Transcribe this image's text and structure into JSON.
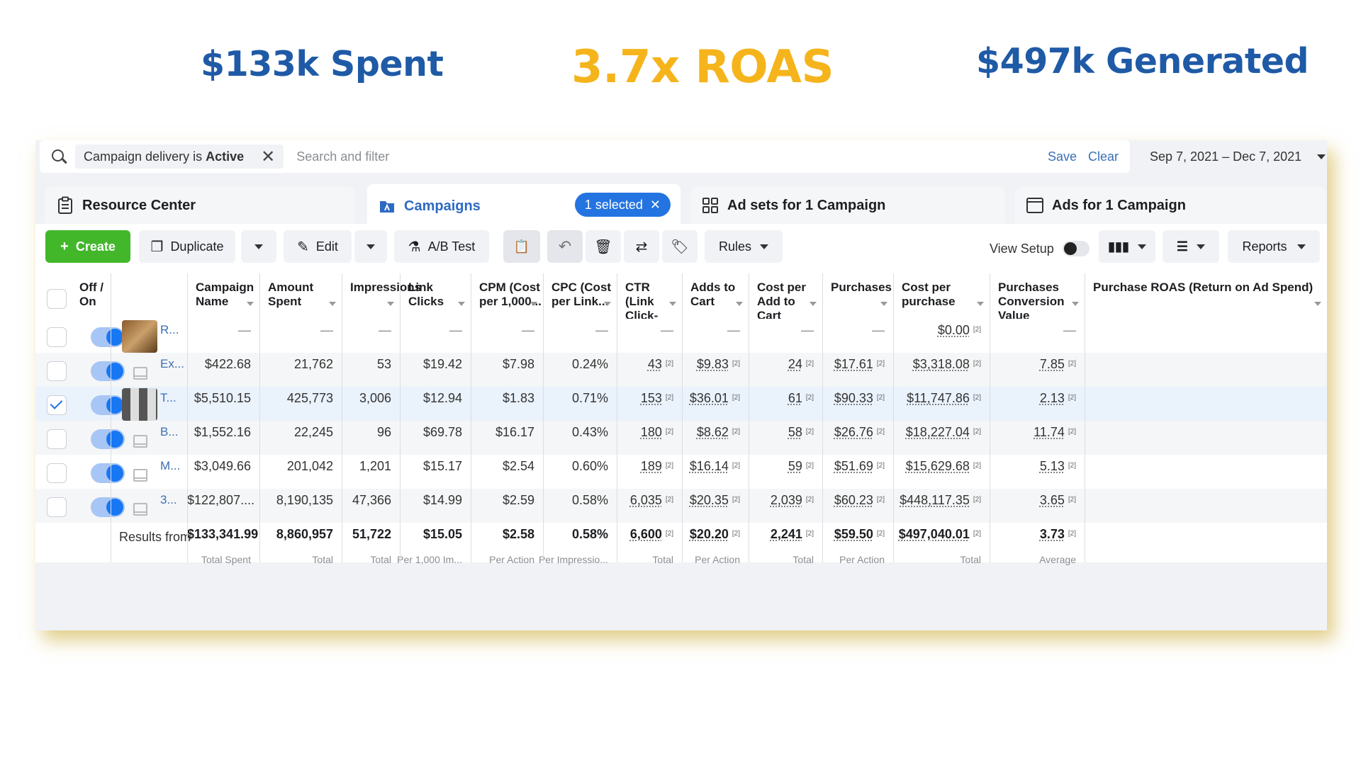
{
  "headline": {
    "spent": "$133k  Spent",
    "roas": "3.7x ROAS",
    "generated": "$497k  Generated"
  },
  "filter": {
    "chip_prefix": "Campaign delivery is",
    "chip_value": "Active",
    "placeholder": "Search and filter",
    "save": "Save",
    "clear": "Clear",
    "date_range": "Sep 7, 2021 – Dec 7, 2021"
  },
  "tabs": {
    "resource_center": "Resource Center",
    "campaigns": "Campaigns",
    "selected_badge": "1 selected",
    "ad_sets": "Ad sets for 1 Campaign",
    "ads": "Ads for 1 Campaign"
  },
  "toolbar": {
    "create": "Create",
    "duplicate": "Duplicate",
    "edit": "Edit",
    "ab_test": "A/B Test",
    "rules": "Rules",
    "view_setup": "View Setup",
    "reports": "Reports"
  },
  "columns": [
    "Off / On",
    "Campaign Name",
    "Amount Spent",
    "Impressions",
    "Link Clicks",
    "CPM (Cost per 1,000...",
    "CPC (Cost per Link...",
    "CTR (Link Click-Through...",
    "Adds to Cart",
    "Cost per Add to Cart",
    "Purchases",
    "Cost per purchase",
    "Purchases Conversion Value",
    "Purchase ROAS (Return on Ad Spend)"
  ],
  "rows": [
    {
      "name": "R...",
      "selected": false,
      "spent": "—",
      "impr": "—",
      "clicks": "—",
      "cpm": "—",
      "cpc": "—",
      "ctr": "—",
      "atc": "—",
      "cpatc": "—",
      "purch": "—",
      "cpp": "—",
      "value": "$0.00",
      "roas": "—"
    },
    {
      "name": "Ex...",
      "selected": false,
      "spent": "$422.68",
      "impr": "21,762",
      "clicks": "53",
      "cpm": "$19.42",
      "cpc": "$7.98",
      "ctr": "0.24%",
      "atc": "43",
      "cpatc": "$9.83",
      "purch": "24",
      "cpp": "$17.61",
      "value": "$3,318.08",
      "roas": "7.85"
    },
    {
      "name": "T...",
      "selected": true,
      "spent": "$5,510.15",
      "impr": "425,773",
      "clicks": "3,006",
      "cpm": "$12.94",
      "cpc": "$1.83",
      "ctr": "0.71%",
      "atc": "153",
      "cpatc": "$36.01",
      "purch": "61",
      "cpp": "$90.33",
      "value": "$11,747.86",
      "roas": "2.13"
    },
    {
      "name": "B...",
      "selected": false,
      "spent": "$1,552.16",
      "impr": "22,245",
      "clicks": "96",
      "cpm": "$69.78",
      "cpc": "$16.17",
      "ctr": "0.43%",
      "atc": "180",
      "cpatc": "$8.62",
      "purch": "58",
      "cpp": "$26.76",
      "value": "$18,227.04",
      "roas": "11.74"
    },
    {
      "name": "M...",
      "selected": false,
      "spent": "$3,049.66",
      "impr": "201,042",
      "clicks": "1,201",
      "cpm": "$15.17",
      "cpc": "$2.54",
      "ctr": "0.60%",
      "atc": "189",
      "cpatc": "$16.14",
      "purch": "59",
      "cpp": "$51.69",
      "value": "$15,629.68",
      "roas": "5.13"
    },
    {
      "name": "3...",
      "selected": false,
      "spent": "$122,807....",
      "impr": "8,190,135",
      "clicks": "47,366",
      "cpm": "$14.99",
      "cpc": "$2.59",
      "ctr": "0.58%",
      "atc": "6,035",
      "cpatc": "$20.35",
      "purch": "2,039",
      "cpp": "$60.23",
      "value": "$448,117.35",
      "roas": "3.65"
    }
  ],
  "footnote_marker": "[2]",
  "totals": {
    "label": "Results from",
    "spent": "$133,341.99",
    "spent_sub": "Total Spent",
    "impr": "8,860,957",
    "impr_sub": "Total",
    "clicks": "51,722",
    "clicks_sub": "Total",
    "cpm": "$15.05",
    "cpm_sub": "Per 1,000 Im...",
    "cpc": "$2.58",
    "cpc_sub": "Per Action",
    "ctr": "0.58%",
    "ctr_sub": "Per Impressio...",
    "atc": "6,600",
    "atc_sub": "Total",
    "cpatc": "$20.20",
    "cpatc_sub": "Per Action",
    "purch": "2,241",
    "purch_sub": "Total",
    "cpp": "$59.50",
    "cpp_sub": "Per Action",
    "value": "$497,040.01",
    "value_sub": "Total",
    "roas": "3.73",
    "roas_sub": "Average"
  }
}
